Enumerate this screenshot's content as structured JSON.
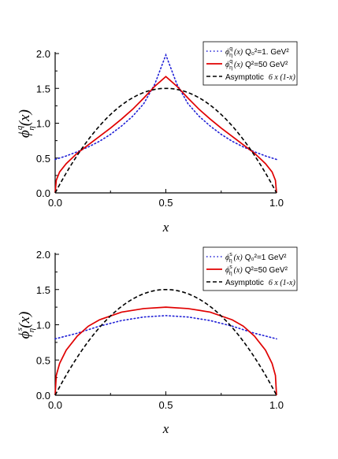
{
  "chart_data": [
    {
      "type": "line",
      "panel": "top",
      "xlabel": "x",
      "ylabel": {
        "symbol": "ϕ",
        "sup": "q",
        "sub": "η",
        "arg": "(x)"
      },
      "xlim": [
        0.0,
        1.0
      ],
      "ylim": [
        0.0,
        2.0
      ],
      "xticks": [
        "0.0",
        "0.5",
        "1.0"
      ],
      "yticks": [
        "0.0",
        "0.5",
        "1.0",
        "1.5",
        "2.0"
      ],
      "legend_position": "top-right",
      "grid": false,
      "series": [
        {
          "style": "dotted",
          "color": "#1f1fd6",
          "legend": {
            "sym": "ϕ",
            "sup": "q",
            "sub": "η",
            "arg": "(x)",
            "text": "Q₀²=1. GeV²"
          },
          "x": [
            0.0,
            0.05,
            0.1,
            0.15,
            0.2,
            0.25,
            0.3,
            0.35,
            0.4,
            0.45,
            0.5,
            0.55,
            0.6,
            0.65,
            0.7,
            0.75,
            0.8,
            0.85,
            0.9,
            0.95,
            1.0
          ],
          "y": [
            0.48,
            0.53,
            0.59,
            0.66,
            0.74,
            0.84,
            0.96,
            1.1,
            1.28,
            1.56,
            1.98,
            1.56,
            1.28,
            1.1,
            0.96,
            0.84,
            0.74,
            0.66,
            0.59,
            0.53,
            0.48
          ]
        },
        {
          "style": "solid",
          "color": "#e00000",
          "legend": {
            "sym": "ϕ",
            "sup": "q",
            "sub": "η",
            "arg": "(x)",
            "text": "Q²=50 GeV²"
          },
          "x": [
            0.0,
            0.005,
            0.02,
            0.05,
            0.1,
            0.15,
            0.2,
            0.25,
            0.3,
            0.35,
            0.4,
            0.45,
            0.5,
            0.55,
            0.6,
            0.65,
            0.7,
            0.75,
            0.8,
            0.85,
            0.9,
            0.95,
            0.98,
            0.995,
            1.0
          ],
          "y": [
            0.0,
            0.18,
            0.3,
            0.42,
            0.57,
            0.69,
            0.81,
            0.93,
            1.06,
            1.2,
            1.36,
            1.53,
            1.67,
            1.53,
            1.36,
            1.2,
            1.06,
            0.93,
            0.81,
            0.69,
            0.57,
            0.42,
            0.3,
            0.18,
            0.0
          ]
        },
        {
          "style": "dashed",
          "color": "#000000",
          "legend": {
            "text": "Asymptotic",
            "formula": "6 x (1-x)"
          },
          "function": "6x(1-x)"
        }
      ]
    },
    {
      "type": "line",
      "panel": "bottom",
      "xlabel": "x",
      "ylabel": {
        "symbol": "ϕ",
        "sup": "s",
        "sub": "η",
        "arg": "(x)"
      },
      "xlim": [
        0.0,
        1.0
      ],
      "ylim": [
        0.0,
        2.0
      ],
      "xticks": [
        "0.0",
        "0.5",
        "1.0"
      ],
      "yticks": [
        "0.0",
        "0.5",
        "1.0",
        "1.5",
        "2.0"
      ],
      "legend_position": "top-right",
      "grid": false,
      "series": [
        {
          "style": "dotted",
          "color": "#1f1fd6",
          "legend": {
            "sym": "ϕ",
            "sup": "s",
            "sub": "η",
            "arg": "(x)",
            "text": "Q₀²=1 GeV²"
          },
          "x": [
            0.0,
            0.1,
            0.2,
            0.3,
            0.4,
            0.5,
            0.6,
            0.7,
            0.8,
            0.9,
            1.0
          ],
          "y": [
            0.8,
            0.88,
            0.98,
            1.06,
            1.11,
            1.13,
            1.11,
            1.06,
            0.98,
            0.88,
            0.8
          ]
        },
        {
          "style": "solid",
          "color": "#e00000",
          "legend": {
            "sym": "ϕ",
            "sup": "s",
            "sub": "η",
            "arg": "(x)",
            "text": "Q²=50 GeV²"
          },
          "x": [
            0.0,
            0.005,
            0.02,
            0.05,
            0.1,
            0.15,
            0.2,
            0.3,
            0.4,
            0.5,
            0.6,
            0.7,
            0.8,
            0.85,
            0.9,
            0.95,
            0.98,
            0.995,
            1.0
          ],
          "y": [
            0.0,
            0.28,
            0.45,
            0.64,
            0.84,
            0.98,
            1.07,
            1.18,
            1.23,
            1.25,
            1.23,
            1.18,
            1.07,
            0.98,
            0.84,
            0.64,
            0.45,
            0.28,
            0.0
          ]
        },
        {
          "style": "dashed",
          "color": "#000000",
          "legend": {
            "text": "Asymptotic",
            "formula": "6 x (1-x)"
          },
          "function": "6x(1-x)"
        }
      ]
    }
  ]
}
